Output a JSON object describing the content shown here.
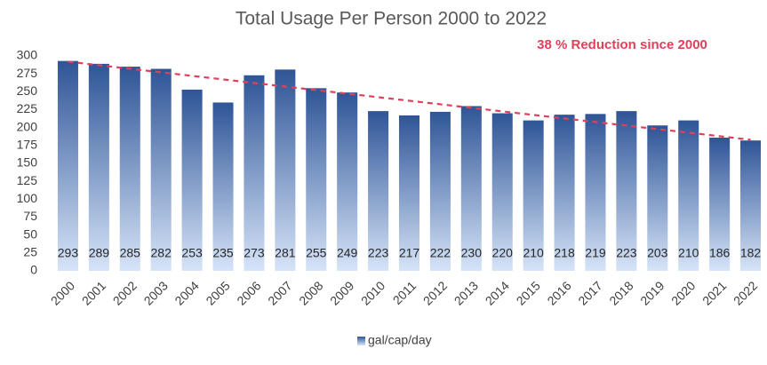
{
  "chart_data": {
    "type": "bar",
    "title": "Total Usage Per Person 2000 to 2022",
    "annotation": "38 % Reduction since 2000",
    "categories": [
      "2000",
      "2001",
      "2002",
      "2003",
      "2004",
      "2005",
      "2006",
      "2007",
      "2008",
      "2009",
      "2010",
      "2011",
      "2012",
      "2013",
      "2014",
      "2015",
      "2016",
      "2017",
      "2018",
      "2019",
      "2020",
      "2021",
      "2022"
    ],
    "series": [
      {
        "name": "gal/cap/day",
        "color": "#2f5597",
        "values": [
          293,
          289,
          285,
          282,
          253,
          235,
          273,
          281,
          255,
          249,
          223,
          217,
          222,
          230,
          220,
          210,
          218,
          219,
          223,
          203,
          210,
          186,
          182
        ]
      }
    ],
    "trend": {
      "color": "#e0405a",
      "start": 292,
      "end": 183
    },
    "ylim": [
      0,
      300
    ],
    "yticks": [
      0,
      25,
      50,
      75,
      100,
      125,
      150,
      175,
      200,
      225,
      250,
      275,
      300
    ],
    "grid": false,
    "legend": "bottom"
  }
}
